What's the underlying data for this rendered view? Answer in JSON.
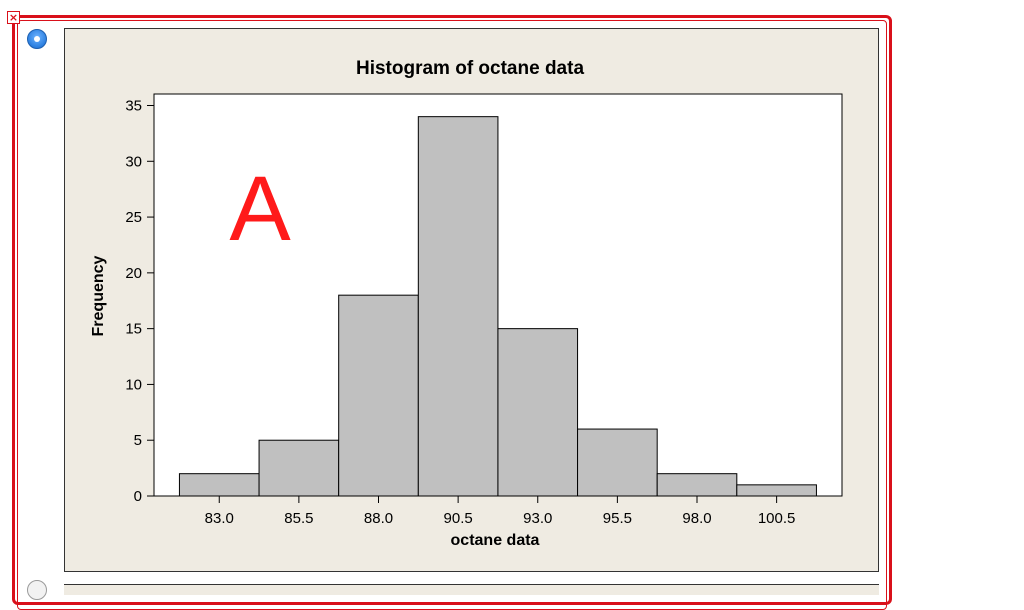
{
  "option": {
    "selected": true,
    "annotation": "A"
  },
  "colors": {
    "frame": "#d9101a",
    "panel": "#efebe2",
    "bar_fill": "#c0c0c0",
    "annotation": "#ff1a1a",
    "radio": "#2b7fe0"
  },
  "icons": {
    "close": "close-icon",
    "radio": "radio-selected-icon"
  },
  "chart_data": {
    "type": "bar",
    "title": "Histogram of octane data",
    "xlabel": "octane data",
    "ylabel": "Frequency",
    "bins": [
      {
        "start": 81.75,
        "end": 84.25,
        "count": 2
      },
      {
        "start": 84.25,
        "end": 86.75,
        "count": 5
      },
      {
        "start": 86.75,
        "end": 89.25,
        "count": 18
      },
      {
        "start": 89.25,
        "end": 91.75,
        "count": 34
      },
      {
        "start": 91.75,
        "end": 94.25,
        "count": 15
      },
      {
        "start": 94.25,
        "end": 96.75,
        "count": 6
      },
      {
        "start": 96.75,
        "end": 99.25,
        "count": 2
      },
      {
        "start": 99.25,
        "end": 101.75,
        "count": 1
      }
    ],
    "xticks": [
      "83.0",
      "85.5",
      "88.0",
      "90.5",
      "93.0",
      "95.5",
      "98.0",
      "100.5"
    ],
    "yticks": [
      "0",
      "5",
      "10",
      "15",
      "20",
      "25",
      "30",
      "35"
    ],
    "ylim": [
      0,
      35
    ],
    "grid": false
  }
}
